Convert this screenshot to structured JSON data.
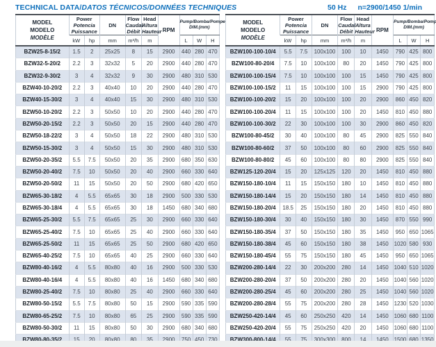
{
  "header_bar": {
    "title_bold": "TECHNICAL DATA/",
    "title_italic": "DATOS TÉCNICOS/DONNÉES TECHNIQUES",
    "frequency": "50 Hz",
    "speed": "n=2900/1450 1/min"
  },
  "colors": {
    "accent_blue": "#0d6fbb",
    "row_shade": "#dce3ee"
  },
  "column_header": {
    "model_lines": [
      "MODEL",
      "MODELO",
      "MODÈLE"
    ],
    "power_lines": [
      "Power",
      "Potencia",
      "Puissance"
    ],
    "power_units": {
      "kw": "kW",
      "hp": "hp"
    },
    "dn_label": "DN",
    "dn_unit": "mm",
    "flow_lines": [
      "Flow",
      "Caudal",
      "Débit"
    ],
    "flow_unit": "m³/h",
    "head_lines": [
      "Head",
      "Altura",
      "Hauteur"
    ],
    "head_unit": "m",
    "rpm_label": "RPM",
    "dim_lines": [
      "Pump/Bomba/Pompe",
      "DIM.(mm)"
    ],
    "dim_units": {
      "l": "L",
      "w": "W",
      "h": "H"
    }
  },
  "tables": {
    "left": {
      "rows": [
        [
          "BZW25-8-15/2",
          "1.5",
          "2",
          "25x25",
          "8",
          "15",
          "2900",
          "440",
          "280",
          "470"
        ],
        [
          "BZW32-5-20/2",
          "2.2",
          "3",
          "32x32",
          "5",
          "20",
          "2900",
          "440",
          "280",
          "470"
        ],
        [
          "BZW32-9-30/2",
          "3",
          "4",
          "32x32",
          "9",
          "30",
          "2900",
          "480",
          "310",
          "530"
        ],
        [
          "BZW40-10-20/2",
          "2.2",
          "3",
          "40x40",
          "10",
          "20",
          "2900",
          "440",
          "280",
          "470"
        ],
        [
          "BZW40-15-30/2",
          "3",
          "4",
          "40x40",
          "15",
          "30",
          "2900",
          "480",
          "310",
          "530"
        ],
        [
          "BZW50-10-20/2",
          "2.2",
          "3",
          "50x50",
          "10",
          "20",
          "2900",
          "440",
          "280",
          "470"
        ],
        [
          "BZW50-20-15/2",
          "2.2",
          "3",
          "50x50",
          "20",
          "15",
          "2900",
          "440",
          "280",
          "470"
        ],
        [
          "BZW50-18-22/2",
          "3",
          "4",
          "50x50",
          "18",
          "22",
          "2900",
          "480",
          "310",
          "530"
        ],
        [
          "BZW50-15-30/2",
          "3",
          "4",
          "50x50",
          "15",
          "30",
          "2900",
          "480",
          "310",
          "530"
        ],
        [
          "BZW50-20-35/2",
          "5.5",
          "7.5",
          "50x50",
          "20",
          "35",
          "2900",
          "680",
          "350",
          "630"
        ],
        [
          "BZW50-20-40/2",
          "7.5",
          "10",
          "50x50",
          "20",
          "40",
          "2900",
          "660",
          "330",
          "640"
        ],
        [
          "BZW50-20-50/2",
          "11",
          "15",
          "50x50",
          "20",
          "50",
          "2900",
          "680",
          "420",
          "650"
        ],
        [
          "BZW65-30-18/2",
          "4",
          "5.5",
          "65x65",
          "30",
          "18",
          "2900",
          "500",
          "330",
          "530"
        ],
        [
          "BZW65-30-18/4",
          "4",
          "5.5",
          "65x65",
          "30",
          "18",
          "1450",
          "680",
          "340",
          "680"
        ],
        [
          "BZW65-25-30/2",
          "5.5",
          "7.5",
          "65x65",
          "25",
          "30",
          "2900",
          "660",
          "330",
          "640"
        ],
        [
          "BZW65-25-40/2",
          "7.5",
          "10",
          "65x65",
          "25",
          "40",
          "2900",
          "660",
          "330",
          "640"
        ],
        [
          "BZW65-25-50/2",
          "11",
          "15",
          "65x65",
          "25",
          "50",
          "2900",
          "680",
          "420",
          "650"
        ],
        [
          "BZW65-40-25/2",
          "7.5",
          "10",
          "65x65",
          "40",
          "25",
          "2900",
          "660",
          "330",
          "640"
        ],
        [
          "BZW80-40-16/2",
          "4",
          "5.5",
          "80x80",
          "40",
          "16",
          "2900",
          "500",
          "330",
          "530"
        ],
        [
          "BZW80-40-16/4",
          "4",
          "5.5",
          "80x80",
          "40",
          "16",
          "1450",
          "680",
          "340",
          "680"
        ],
        [
          "BZW80-25-40/2",
          "7.5",
          "10",
          "80x80",
          "25",
          "40",
          "2900",
          "660",
          "330",
          "640"
        ],
        [
          "BZW80-50-15/2",
          "5.5",
          "7.5",
          "80x80",
          "50",
          "15",
          "2900",
          "590",
          "335",
          "590"
        ],
        [
          "BZW80-65-25/2",
          "7.5",
          "10",
          "80x80",
          "65",
          "25",
          "2900",
          "590",
          "335",
          "590"
        ],
        [
          "BZW80-50-30/2",
          "11",
          "15",
          "80x80",
          "50",
          "30",
          "2900",
          "680",
          "340",
          "680"
        ],
        [
          "BZW80-80-35/2",
          "15",
          "20",
          "80x80",
          "80",
          "35",
          "2900",
          "750",
          "450",
          "730"
        ],
        [
          "BZW80-50-60/2",
          "22",
          "30",
          "80x80",
          "50",
          "60",
          "2900",
          "720",
          "430",
          "700"
        ]
      ]
    },
    "right": {
      "rows": [
        [
          "BZW100-100-10/4",
          "5.5",
          "7.5",
          "100x100",
          "100",
          "10",
          "1450",
          "790",
          "425",
          "800"
        ],
        [
          "BZW100-80-20/4",
          "7.5",
          "10",
          "100x100",
          "80",
          "20",
          "1450",
          "790",
          "425",
          "800"
        ],
        [
          "BZW100-100-15/4",
          "7.5",
          "10",
          "100x100",
          "100",
          "15",
          "1450",
          "790",
          "425",
          "800"
        ],
        [
          "BZW100-100-15/2",
          "11",
          "15",
          "100x100",
          "100",
          "15",
          "2900",
          "790",
          "425",
          "800"
        ],
        [
          "BZW100-100-20/2",
          "15",
          "20",
          "100x100",
          "100",
          "20",
          "2900",
          "860",
          "450",
          "820"
        ],
        [
          "BZW100-100-20/4",
          "11",
          "15",
          "100x100",
          "100",
          "20",
          "1450",
          "810",
          "450",
          "880"
        ],
        [
          "BZW100-100-30/2",
          "22",
          "30",
          "100x100",
          "100",
          "30",
          "2900",
          "860",
          "450",
          "820"
        ],
        [
          "BZW100-80-45/2",
          "30",
          "40",
          "100x100",
          "80",
          "45",
          "2900",
          "825",
          "550",
          "840"
        ],
        [
          "BZW100-80-60/2",
          "37",
          "50",
          "100x100",
          "80",
          "60",
          "2900",
          "825",
          "550",
          "840"
        ],
        [
          "BZW100-80-80/2",
          "45",
          "60",
          "100x100",
          "80",
          "80",
          "2900",
          "825",
          "550",
          "840"
        ],
        [
          "BZW125-120-20/4",
          "15",
          "20",
          "125x125",
          "120",
          "20",
          "1450",
          "810",
          "450",
          "880"
        ],
        [
          "BZW150-180-10/4",
          "11",
          "15",
          "150x150",
          "180",
          "10",
          "1450",
          "810",
          "450",
          "880"
        ],
        [
          "BZW150-180-14/4",
          "15",
          "20",
          "150x150",
          "180",
          "14",
          "1450",
          "810",
          "450",
          "880"
        ],
        [
          "BZW150-180-20/4",
          "18.5",
          "25",
          "150x150",
          "180",
          "20",
          "1450",
          "810",
          "450",
          "880"
        ],
        [
          "BZW150-180-30/4",
          "30",
          "40",
          "150x150",
          "180",
          "30",
          "1450",
          "870",
          "550",
          "990"
        ],
        [
          "BZW150-180-35/4",
          "37",
          "50",
          "150x150",
          "180",
          "35",
          "1450",
          "950",
          "650",
          "1065"
        ],
        [
          "BZW150-180-38/4",
          "45",
          "60",
          "150x150",
          "180",
          "38",
          "1450",
          "1020",
          "580",
          "930"
        ],
        [
          "BZW150-180-45/4",
          "55",
          "75",
          "150x150",
          "180",
          "45",
          "1450",
          "950",
          "650",
          "1065"
        ],
        [
          "BZW200-280-14/4",
          "22",
          "30",
          "200x200",
          "280",
          "14",
          "1450",
          "1040",
          "510",
          "1020"
        ],
        [
          "BZW200-280-20/4",
          "37",
          "50",
          "200x200",
          "280",
          "20",
          "1450",
          "1040",
          "560",
          "1020"
        ],
        [
          "BZW200-280-25/4",
          "45",
          "60",
          "200x200",
          "280",
          "25",
          "1450",
          "1040",
          "560",
          "1020"
        ],
        [
          "BZW200-280-28/4",
          "55",
          "75",
          "200x200",
          "280",
          "28",
          "1450",
          "1230",
          "520",
          "1030"
        ],
        [
          "BZW250-420-14/4",
          "45",
          "60",
          "250x250",
          "420",
          "14",
          "1450",
          "1060",
          "680",
          "1100"
        ],
        [
          "BZW250-420-20/4",
          "55",
          "75",
          "250x250",
          "420",
          "20",
          "1450",
          "1060",
          "680",
          "1100"
        ],
        [
          "BZW300-800-14/4",
          "55",
          "75",
          "300x300",
          "800",
          "14",
          "1450",
          "1500",
          "680",
          "1350"
        ],
        [
          "BZW300-800-20/4",
          "75",
          "100",
          "300x300",
          "800",
          "20",
          "1450",
          "1500",
          "680",
          "1350"
        ]
      ]
    }
  }
}
